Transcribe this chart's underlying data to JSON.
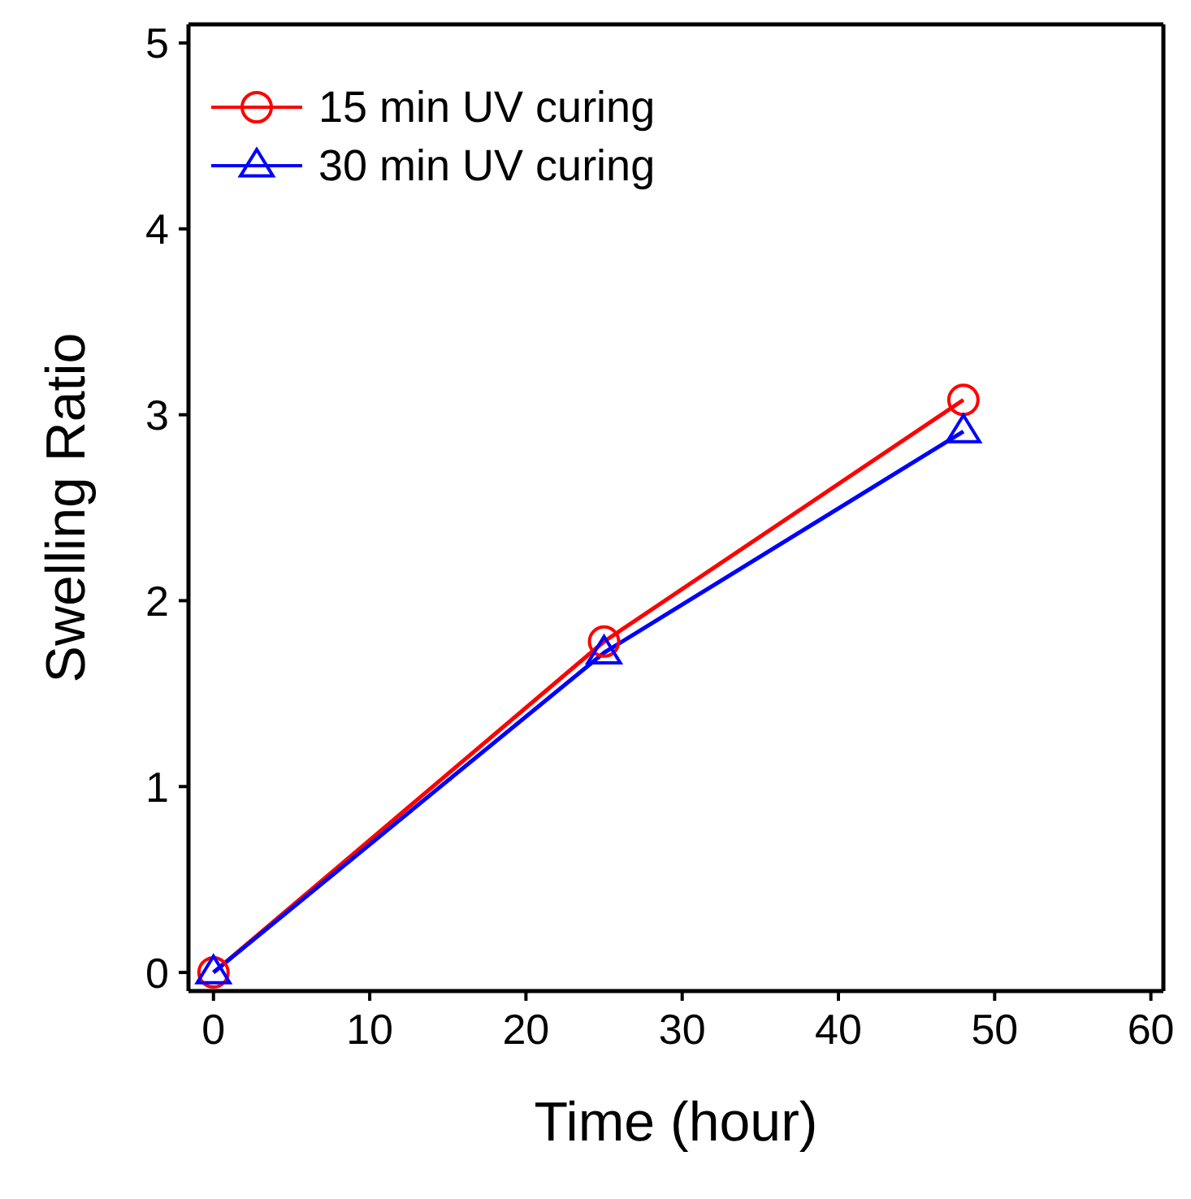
{
  "chart_data": {
    "type": "line",
    "xlabel": "Time (hour)",
    "ylabel": "Swelling Ratio",
    "x": [
      0,
      25,
      48
    ],
    "series": [
      {
        "name": "15 min UV curing",
        "color": "#ff0000",
        "marker": "circle",
        "values": [
          0,
          1.78,
          3.08
        ]
      },
      {
        "name": "30 min UV curing",
        "color": "#0000ff",
        "marker": "triangle",
        "values": [
          0,
          1.72,
          2.91
        ]
      }
    ],
    "xlim": [
      -1.6,
      60.8
    ],
    "xticks": [
      0,
      10,
      20,
      30,
      40,
      50,
      60
    ],
    "ylim": [
      -0.1,
      5.1
    ],
    "yticks": [
      0,
      1,
      2,
      3,
      4,
      5
    ],
    "grid": false,
    "legend": "top left",
    "line_style": "solid"
  }
}
